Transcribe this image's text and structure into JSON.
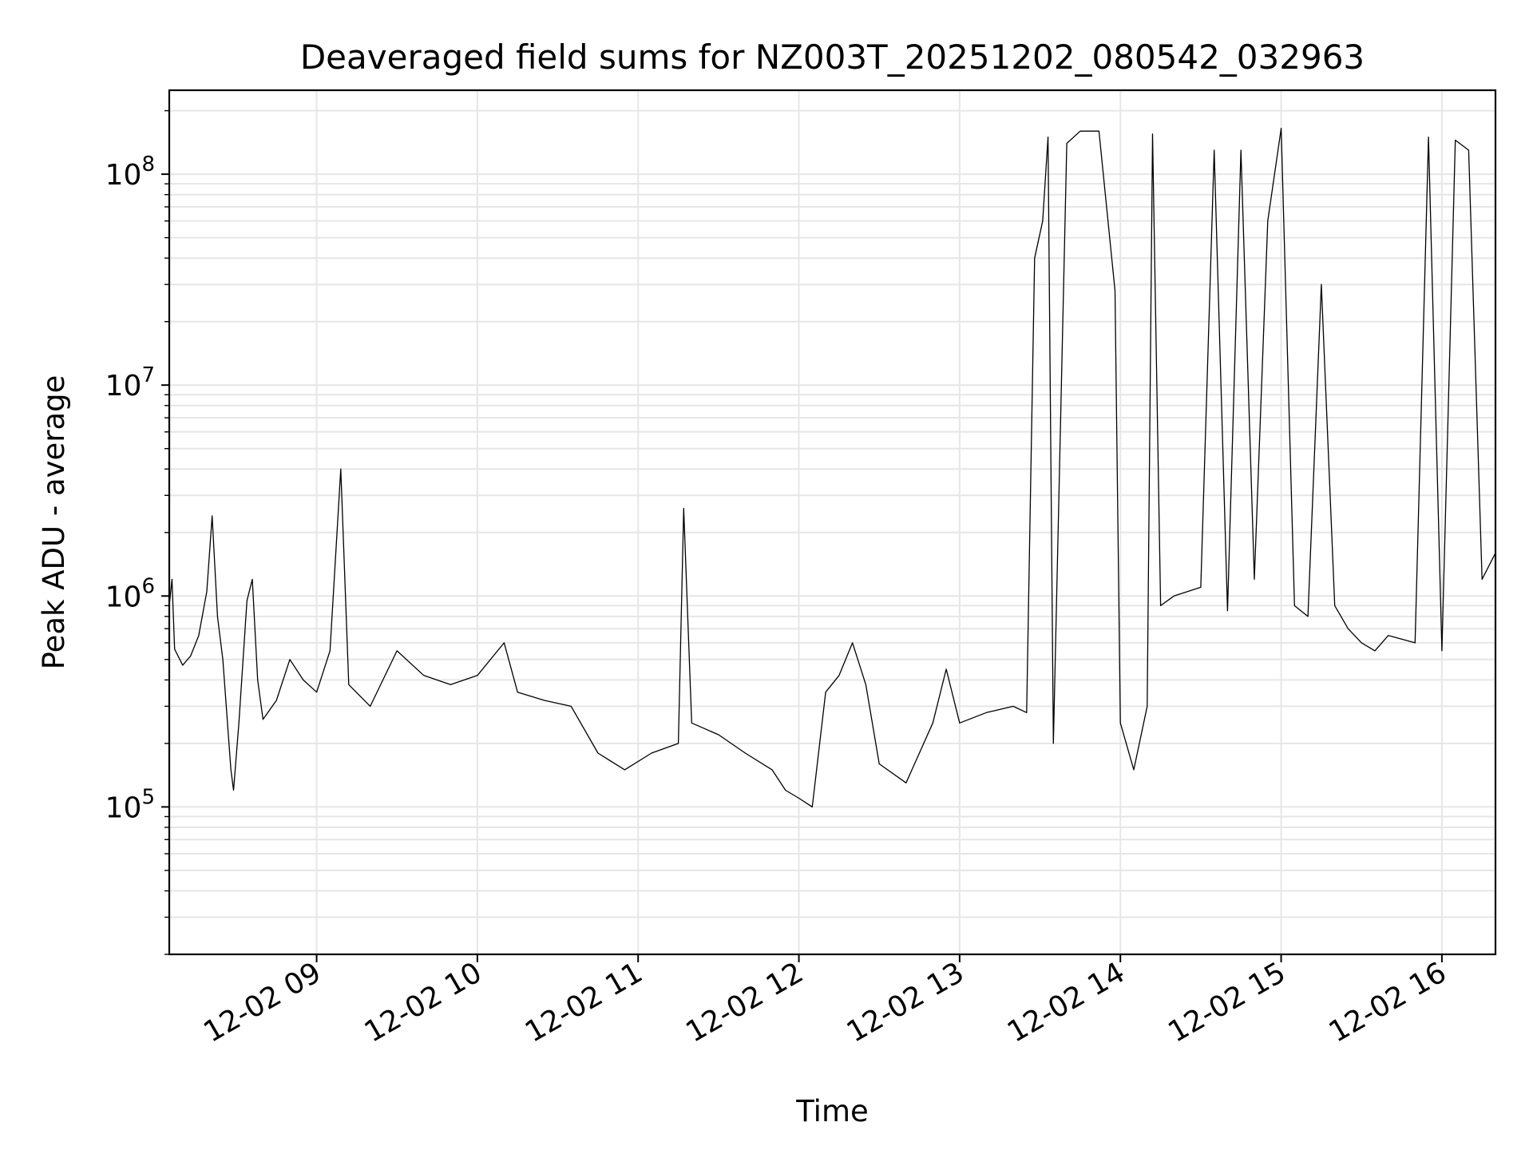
{
  "chart_data": {
    "type": "line",
    "title": "Deaveraged field sums for NZ003T_20251202_080542_032963",
    "xlabel": "Time",
    "ylabel": "Peak ADU - average",
    "yscale": "log",
    "grid": true,
    "line_color": "#000000",
    "xlim": [
      "12-02 08:05",
      "12-02 16:20"
    ],
    "ylim": [
      20000,
      250000000
    ],
    "x_ticks": [
      "12-02 09",
      "12-02 10",
      "12-02 11",
      "12-02 12",
      "12-02 13",
      "12-02 14",
      "12-02 15",
      "12-02 16"
    ],
    "y_ticks": [
      {
        "base": "10",
        "exp": "5",
        "value": 100000
      },
      {
        "base": "10",
        "exp": "6",
        "value": 1000000
      },
      {
        "base": "10",
        "exp": "7",
        "value": 10000000
      },
      {
        "base": "10",
        "exp": "8",
        "value": 100000000
      }
    ],
    "series": [
      {
        "points": [
          [
            "12-02 08:05",
            900000
          ],
          [
            "12-02 08:06",
            1200000
          ],
          [
            "12-02 08:07",
            560000
          ],
          [
            "12-02 08:10",
            470000
          ],
          [
            "12-02 08:13",
            520000
          ],
          [
            "12-02 08:16",
            650000
          ],
          [
            "12-02 08:19",
            1050000
          ],
          [
            "12-02 08:21",
            2400000
          ],
          [
            "12-02 08:23",
            800000
          ],
          [
            "12-02 08:25",
            500000
          ],
          [
            "12-02 08:28",
            150000
          ],
          [
            "12-02 08:29",
            120000
          ],
          [
            "12-02 08:31",
            250000
          ],
          [
            "12-02 08:34",
            950000
          ],
          [
            "12-02 08:36",
            1200000
          ],
          [
            "12-02 08:38",
            400000
          ],
          [
            "12-02 08:40",
            260000
          ],
          [
            "12-02 08:45",
            320000
          ],
          [
            "12-02 08:50",
            500000
          ],
          [
            "12-02 08:55",
            400000
          ],
          [
            "12-02 09:00",
            350000
          ],
          [
            "12-02 09:05",
            550000
          ],
          [
            "12-02 09:09",
            4000000
          ],
          [
            "12-02 09:12",
            380000
          ],
          [
            "12-02 09:20",
            300000
          ],
          [
            "12-02 09:30",
            550000
          ],
          [
            "12-02 09:40",
            420000
          ],
          [
            "12-02 09:50",
            380000
          ],
          [
            "12-02 10:00",
            420000
          ],
          [
            "12-02 10:10",
            600000
          ],
          [
            "12-02 10:15",
            350000
          ],
          [
            "12-02 10:25",
            320000
          ],
          [
            "12-02 10:35",
            300000
          ],
          [
            "12-02 10:45",
            180000
          ],
          [
            "12-02 10:55",
            150000
          ],
          [
            "12-02 11:05",
            180000
          ],
          [
            "12-02 11:15",
            200000
          ],
          [
            "12-02 11:17",
            2600000
          ],
          [
            "12-02 11:20",
            250000
          ],
          [
            "12-02 11:30",
            220000
          ],
          [
            "12-02 11:40",
            180000
          ],
          [
            "12-02 11:50",
            150000
          ],
          [
            "12-02 11:55",
            120000
          ],
          [
            "12-02 12:00",
            110000
          ],
          [
            "12-02 12:05",
            100000
          ],
          [
            "12-02 12:10",
            350000
          ],
          [
            "12-02 12:15",
            420000
          ],
          [
            "12-02 12:20",
            600000
          ],
          [
            "12-02 12:25",
            380000
          ],
          [
            "12-02 12:30",
            160000
          ],
          [
            "12-02 12:40",
            130000
          ],
          [
            "12-02 12:50",
            250000
          ],
          [
            "12-02 12:55",
            450000
          ],
          [
            "12-02 13:00",
            250000
          ],
          [
            "12-02 13:10",
            280000
          ],
          [
            "12-02 13:20",
            300000
          ],
          [
            "12-02 13:25",
            280000
          ],
          [
            "12-02 13:28",
            40000000
          ],
          [
            "12-02 13:31",
            60000000
          ],
          [
            "12-02 13:33",
            150000000
          ],
          [
            "12-02 13:35",
            200000
          ],
          [
            "12-02 13:40",
            140000000
          ],
          [
            "12-02 13:45",
            160000000
          ],
          [
            "12-02 13:48",
            160000000
          ],
          [
            "12-02 13:52",
            160000000
          ],
          [
            "12-02 13:58",
            28000000
          ],
          [
            "12-02 14:00",
            250000
          ],
          [
            "12-02 14:05",
            150000
          ],
          [
            "12-02 14:10",
            300000
          ],
          [
            "12-02 14:12",
            155000000
          ],
          [
            "12-02 14:15",
            900000
          ],
          [
            "12-02 14:20",
            1000000
          ],
          [
            "12-02 14:30",
            1100000
          ],
          [
            "12-02 14:35",
            130000000
          ],
          [
            "12-02 14:40",
            850000
          ],
          [
            "12-02 14:45",
            130000000
          ],
          [
            "12-02 14:50",
            1200000
          ],
          [
            "12-02 14:55",
            60000000
          ],
          [
            "12-02 15:00",
            165000000
          ],
          [
            "12-02 15:05",
            900000
          ],
          [
            "12-02 15:10",
            800000
          ],
          [
            "12-02 15:15",
            30000000
          ],
          [
            "12-02 15:20",
            900000
          ],
          [
            "12-02 15:25",
            700000
          ],
          [
            "12-02 15:30",
            600000
          ],
          [
            "12-02 15:35",
            550000
          ],
          [
            "12-02 15:40",
            650000
          ],
          [
            "12-02 15:50",
            600000
          ],
          [
            "12-02 15:55",
            150000000
          ],
          [
            "12-02 16:00",
            550000
          ],
          [
            "12-02 16:05",
            145000000
          ],
          [
            "12-02 16:10",
            130000000
          ],
          [
            "12-02 16:15",
            1200000
          ],
          [
            "12-02 16:20",
            1600000
          ]
        ]
      }
    ]
  }
}
